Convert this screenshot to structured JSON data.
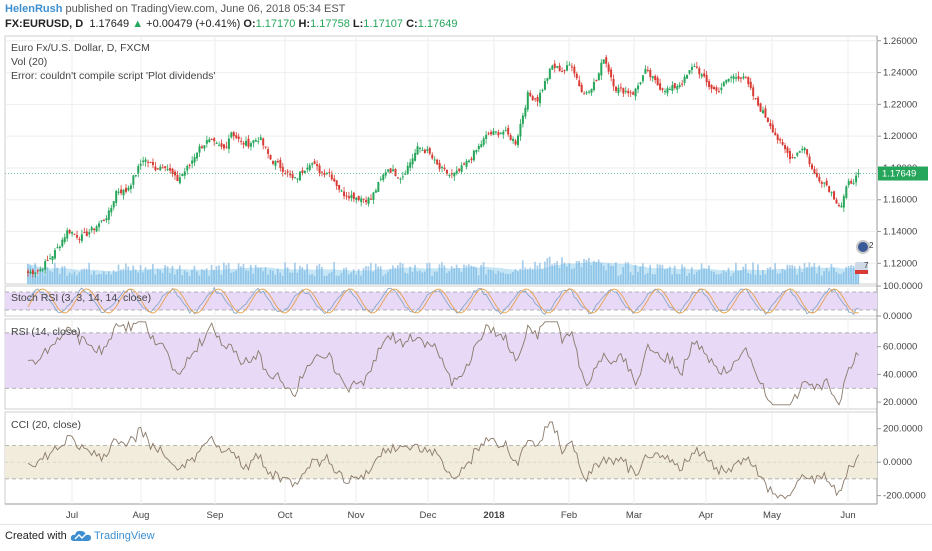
{
  "header": {
    "user": "HelenRush",
    "published_text": " published on TradingView.com, June 06, 2018 05:34 EST",
    "symbol": "FX:EURUSD, D",
    "last": "1.17649",
    "change_arrow": "▲",
    "change": "+0.00479 (+0.41%)",
    "o_label": "O:",
    "o_value": "1.17170",
    "h_label": "H:",
    "h_value": "1.17758",
    "l_label": "L:",
    "l_value": "1.17107",
    "c_label": "C:",
    "c_value": "1.17649"
  },
  "legend": {
    "title": "Euro Fx/U.S. Dollar, D, FXCM",
    "vol": "Vol (20)",
    "error": "Error: couldn't compile script 'Plot dividends'",
    "stoch": "Stoch RSI (3, 3, 14, 14, close)",
    "rsi": "RSI (14, close)",
    "cci": "CCI (20, close)"
  },
  "markers": {
    "dividend_badge": "2",
    "earnings_badge": "7"
  },
  "footer": {
    "created_with": "Created with",
    "brand": "TradingView",
    "logo_icon": "tradingview-cloud-icon"
  },
  "colors": {
    "up": "#26a65b",
    "down": "#d83a34",
    "volume": "#9fc8e8",
    "volume_ma": "#5fb8e6",
    "band": "#e8d9f7",
    "cci_band": "#f2ecdd",
    "last_price_bg": "#26a65b",
    "indicator_line": "#8a7a6a"
  },
  "chart_data": [
    {
      "type": "candlestick",
      "title": "Euro Fx/U.S. Dollar, D, FXCM",
      "x_tick_labels": [
        "Jul",
        "Aug",
        "Sep",
        "Oct",
        "Nov",
        "Dec",
        "2018",
        "Feb",
        "Mar",
        "Apr",
        "May",
        "Jun"
      ],
      "y_tick_labels": [
        "1.26000",
        "1.24000",
        "1.22000",
        "1.20000",
        "1.18000",
        "1.16000",
        "1.14000",
        "1.12000"
      ],
      "ylim": [
        1.107,
        1.263
      ],
      "last_price": "1.17649",
      "close_path": [
        [
          "Jun 20",
          1.114
        ],
        [
          "Jun 23",
          1.116
        ],
        [
          "Jun 27",
          1.128
        ],
        [
          "Jun 30",
          1.141
        ],
        [
          "Jul 05",
          1.136
        ],
        [
          "Jul 10",
          1.141
        ],
        [
          "Jul 14",
          1.146
        ],
        [
          "Jul 18",
          1.152
        ],
        [
          "Jul 21",
          1.166
        ],
        [
          "Jul 25",
          1.165
        ],
        [
          "Jul 28",
          1.172
        ],
        [
          "Aug 02",
          1.186
        ],
        [
          "Aug 07",
          1.18
        ],
        [
          "Aug 11",
          1.182
        ],
        [
          "Aug 16",
          1.172
        ],
        [
          "Aug 21",
          1.181
        ],
        [
          "Aug 25",
          1.192
        ],
        [
          "Aug 29",
          1.197
        ],
        [
          "Sep 05",
          1.192
        ],
        [
          "Sep 08",
          1.203
        ],
        [
          "Sep 12",
          1.196
        ],
        [
          "Sep 15",
          1.195
        ],
        [
          "Sep 20",
          1.199
        ],
        [
          "Sep 25",
          1.185
        ],
        [
          "Sep 29",
          1.181
        ],
        [
          "Oct 05",
          1.172
        ],
        [
          "Oct 12",
          1.184
        ],
        [
          "Oct 17",
          1.177
        ],
        [
          "Oct 20",
          1.178
        ],
        [
          "Oct 26",
          1.164
        ],
        [
          "Nov 03",
          1.161
        ],
        [
          "Nov 07",
          1.16
        ],
        [
          "Nov 14",
          1.18
        ],
        [
          "Nov 20",
          1.174
        ],
        [
          "Nov 27",
          1.193
        ],
        [
          "Dec 01",
          1.19
        ],
        [
          "Dec 06",
          1.18
        ],
        [
          "Dec 12",
          1.175
        ],
        [
          "Dec 15",
          1.177
        ],
        [
          "Dec 21",
          1.186
        ],
        [
          "Dec 29",
          1.201
        ],
        [
          "Jan 05",
          1.203
        ],
        [
          "Jan 10",
          1.196
        ],
        [
          "Jan 15",
          1.226
        ],
        [
          "Jan 19",
          1.223
        ],
        [
          "Jan 25",
          1.244
        ],
        [
          "Jan 30",
          1.241
        ],
        [
          "Feb 02",
          1.246
        ],
        [
          "Feb 07",
          1.226
        ],
        [
          "Feb 13",
          1.235
        ],
        [
          "Feb 16",
          1.25
        ],
        [
          "Feb 21",
          1.23
        ],
        [
          "Mar 01",
          1.227
        ],
        [
          "Mar 06",
          1.241
        ],
        [
          "Mar 12",
          1.231
        ],
        [
          "Mar 16",
          1.229
        ],
        [
          "Mar 22",
          1.234
        ],
        [
          "Mar 27",
          1.245
        ],
        [
          "Apr 02",
          1.232
        ],
        [
          "Apr 06",
          1.228
        ],
        [
          "Apr 12",
          1.237
        ],
        [
          "Apr 18",
          1.238
        ],
        [
          "Apr 24",
          1.221
        ],
        [
          "Apr 30",
          1.208
        ],
        [
          "May 04",
          1.196
        ],
        [
          "May 09",
          1.186
        ],
        [
          "May 14",
          1.194
        ],
        [
          "May 18",
          1.176
        ],
        [
          "May 23",
          1.17
        ],
        [
          "May 25",
          1.165
        ],
        [
          "May 29",
          1.155
        ],
        [
          "Jun 01",
          1.17
        ],
        [
          "Jun 05",
          1.176
        ]
      ]
    },
    {
      "type": "bar",
      "title": "Vol (20)",
      "note": "volume bars with 20-period moving average band"
    },
    {
      "type": "line",
      "title": "Stoch RSI (3, 3, 14, 14, close)",
      "y_tick_labels": [
        "100.0000",
        "0.0000"
      ],
      "ylim": [
        0,
        100
      ]
    },
    {
      "type": "line",
      "title": "RSI (14, close)",
      "y_tick_labels": [
        "60.0000",
        "40.0000",
        "20.0000"
      ],
      "ylim": [
        15,
        80
      ],
      "band": [
        30,
        70
      ]
    },
    {
      "type": "line",
      "title": "CCI (20, close)",
      "y_tick_labels": [
        "200.0000",
        "0.0000",
        "-200.0000"
      ],
      "ylim": [
        -250,
        300
      ],
      "band": [
        -100,
        100
      ]
    }
  ]
}
